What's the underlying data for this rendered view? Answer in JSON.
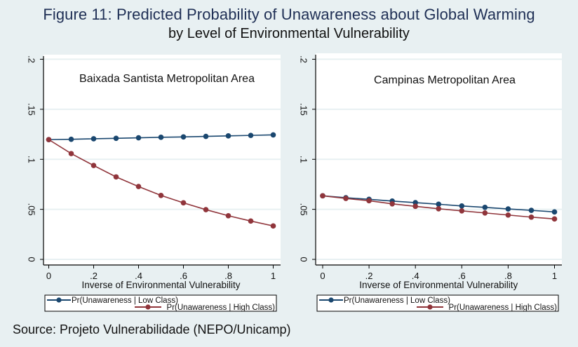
{
  "figure": {
    "title": "Figure 11: Predicted Probability of Unawareness about Global Warming",
    "subtitle": "by Level of Environmental Vulnerability",
    "source": "Source: Projeto Vulnerabilidade (NEPO/Unicamp)"
  },
  "colors": {
    "background": "#e8f0f2",
    "plot_background": "#ffffff",
    "grid": "#e8f0f2",
    "low_class": "#1a476f",
    "high_class": "#90353b"
  },
  "chart_data": [
    {
      "type": "line",
      "title": "Baixada Santista Metropolitan Area",
      "xlabel": "Inverse of Environmental Vulnerability",
      "ylabel": "",
      "xlim": [
        0,
        1
      ],
      "ylim": [
        0,
        0.2
      ],
      "xticks": [
        0,
        0.2,
        0.4,
        0.6,
        0.8,
        1
      ],
      "xtick_labels": [
        "0",
        ".2",
        ".4",
        ".6",
        ".8",
        "1"
      ],
      "yticks": [
        0,
        0.05,
        0.1,
        0.15,
        0.2
      ],
      "ytick_labels": [
        "0",
        ".05",
        ".1",
        ".15",
        ".2"
      ],
      "grid": true,
      "legend_position": "bottom",
      "x": [
        0,
        0.1,
        0.2,
        0.3,
        0.4,
        0.5,
        0.6,
        0.7,
        0.8,
        0.9,
        1.0
      ],
      "series": [
        {
          "name": "Pr(Unawareness | Low Class)",
          "color": "#1a476f",
          "values": [
            0.1197,
            0.12,
            0.1205,
            0.121,
            0.1215,
            0.122,
            0.1224,
            0.1229,
            0.1234,
            0.1239,
            0.1244
          ]
        },
        {
          "name": "Pr(Unawareness | High Class)",
          "color": "#90353b",
          "values": [
            0.1197,
            0.1057,
            0.0938,
            0.0824,
            0.0728,
            0.0639,
            0.0565,
            0.0497,
            0.0436,
            0.0383,
            0.0334
          ]
        }
      ]
    },
    {
      "type": "line",
      "title": "Campinas Metropolitan Area",
      "xlabel": "Inverse of Environmental Vulnerability",
      "ylabel": "",
      "xlim": [
        0,
        1
      ],
      "ylim": [
        0,
        0.2
      ],
      "xticks": [
        0,
        0.2,
        0.4,
        0.6,
        0.8,
        1
      ],
      "xtick_labels": [
        "0",
        ".2",
        ".4",
        ".6",
        ".8",
        "1"
      ],
      "yticks": [
        0,
        0.05,
        0.1,
        0.15,
        0.2
      ],
      "ytick_labels": [
        "0",
        ".05",
        ".1",
        ".15",
        ".2"
      ],
      "grid": true,
      "legend_position": "bottom",
      "x": [
        0,
        0.1,
        0.2,
        0.3,
        0.4,
        0.5,
        0.6,
        0.7,
        0.8,
        0.9,
        1.0
      ],
      "series": [
        {
          "name": "Pr(Unawareness | Low Class)",
          "color": "#1a476f",
          "values": [
            0.0635,
            0.0616,
            0.06,
            0.0583,
            0.0567,
            0.0551,
            0.0534,
            0.052,
            0.0504,
            0.049,
            0.0474
          ]
        },
        {
          "name": "Pr(Unawareness | High Class)",
          "color": "#90353b",
          "values": [
            0.0635,
            0.0609,
            0.0586,
            0.0555,
            0.053,
            0.0506,
            0.0485,
            0.0464,
            0.0443,
            0.0422,
            0.0404
          ]
        }
      ]
    }
  ]
}
